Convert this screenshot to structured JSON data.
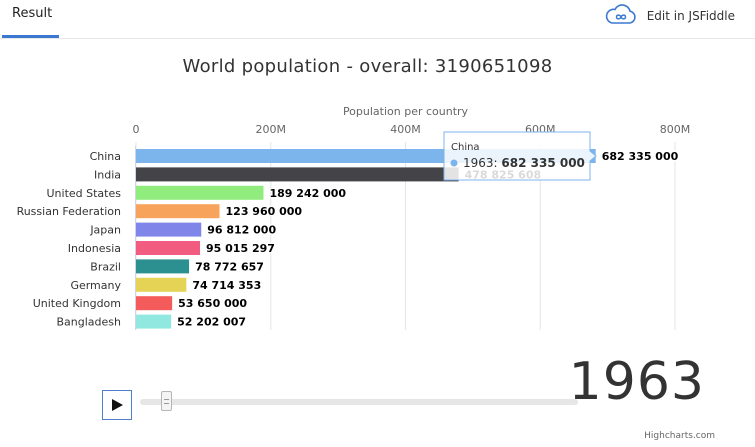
{
  "topbar": {
    "result_tab": "Result",
    "edit_label": "Edit in JSFiddle",
    "edit_icon": "cloud-infinity-icon"
  },
  "title": {
    "text": "World population - overall: ",
    "value": "3190651098"
  },
  "chart_data": {
    "type": "bar",
    "orientation": "horizontal",
    "title": "World population - overall: 3190651098",
    "xlabel": "Population per country",
    "xlim": [
      0,
      800000000
    ],
    "ticks": [
      0,
      200000000,
      400000000,
      600000000,
      800000000
    ],
    "tick_labels": [
      "0",
      "200M",
      "400M",
      "600M",
      "800M"
    ],
    "grid": true,
    "categories": [
      "China",
      "India",
      "United States",
      "Russian Federation",
      "Japan",
      "Indonesia",
      "Brazil",
      "Germany",
      "United Kingdom",
      "Bangladesh"
    ],
    "values": [
      682335000,
      478825608,
      189242000,
      123960000,
      96812000,
      95015297,
      78772657,
      74714353,
      53650000,
      52202007
    ],
    "value_labels": [
      "682 335 000",
      "478 825 608",
      "189 242 000",
      "123 960 000",
      "96 812 000",
      "95 015 297",
      "78 772 657",
      "74 714 353",
      "53 650 000",
      "52 202 007"
    ],
    "colors": [
      "#7cb5ec",
      "#434348",
      "#90ed7d",
      "#f7a35c",
      "#8085e9",
      "#f15c80",
      "#2b908f",
      "#e4d354",
      "#f45b5b",
      "#91e8e1"
    ],
    "tooltip": {
      "category": "China",
      "series_label": "1963",
      "value_label": "682 335 000"
    }
  },
  "controls": {
    "year": "1963",
    "play_icon": "play-icon",
    "slider_value": 1963,
    "slider_range": [
      1960,
      2018
    ]
  },
  "credits": "Highcharts.com"
}
